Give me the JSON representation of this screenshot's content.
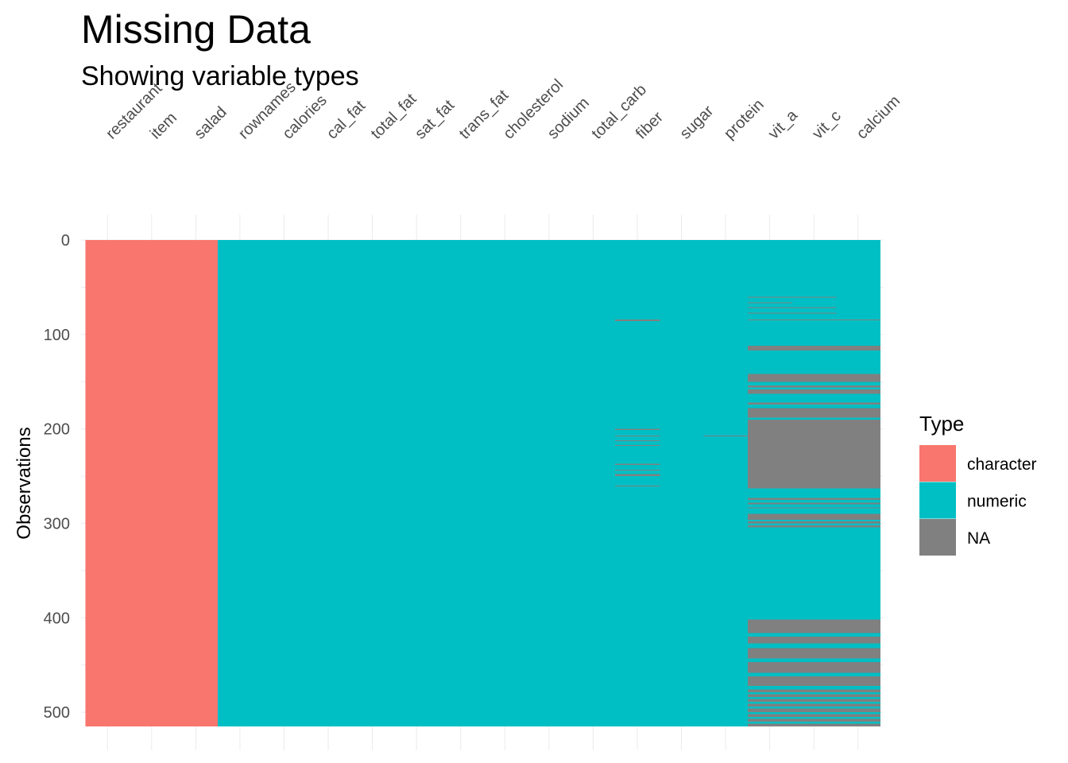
{
  "chart_data": {
    "type": "heatmap",
    "title": "Missing Data",
    "subtitle": "Showing variable types",
    "ylabel": "Observations",
    "xlabel": "",
    "n_obs": 515,
    "ylim": [
      0,
      515
    ],
    "y_ticks": [
      0,
      100,
      200,
      300,
      400,
      500
    ],
    "grid": true,
    "columns": [
      {
        "name": "restaurant",
        "type": "character"
      },
      {
        "name": "item",
        "type": "character"
      },
      {
        "name": "salad",
        "type": "character"
      },
      {
        "name": "rownames",
        "type": "numeric"
      },
      {
        "name": "calories",
        "type": "numeric"
      },
      {
        "name": "cal_fat",
        "type": "numeric"
      },
      {
        "name": "total_fat",
        "type": "numeric"
      },
      {
        "name": "sat_fat",
        "type": "numeric"
      },
      {
        "name": "trans_fat",
        "type": "numeric"
      },
      {
        "name": "cholesterol",
        "type": "numeric"
      },
      {
        "name": "sodium",
        "type": "numeric"
      },
      {
        "name": "total_carb",
        "type": "numeric"
      },
      {
        "name": "fiber",
        "type": "numeric"
      },
      {
        "name": "sugar",
        "type": "numeric"
      },
      {
        "name": "protein",
        "type": "numeric"
      },
      {
        "name": "vit_a",
        "type": "numeric"
      },
      {
        "name": "vit_c",
        "type": "numeric"
      },
      {
        "name": "calcium",
        "type": "numeric"
      }
    ],
    "missing": [
      {
        "columns": [
          "fiber"
        ],
        "rows": [
          [
            84,
            86
          ],
          [
            200,
            201
          ],
          [
            207,
            208
          ],
          [
            212,
            213
          ],
          [
            217,
            218
          ],
          [
            237,
            238
          ],
          [
            243,
            244
          ],
          [
            248,
            250
          ],
          [
            260,
            261
          ]
        ]
      },
      {
        "columns": [
          "protein"
        ],
        "rows": [
          [
            207,
            208
          ]
        ]
      },
      {
        "columns": [
          "vit_a"
        ],
        "rows": [
          [
            60,
            61
          ],
          [
            66,
            67
          ],
          [
            71,
            72
          ],
          [
            77,
            78
          ]
        ]
      },
      {
        "columns": [
          "vit_a",
          "vit_c"
        ],
        "rows": [
          [
            60,
            61
          ],
          [
            71,
            72
          ],
          [
            77,
            78
          ]
        ]
      },
      {
        "columns": [
          "vit_a",
          "vit_c",
          "calcium"
        ],
        "rows": [
          [
            84,
            85
          ],
          [
            112,
            117
          ],
          [
            142,
            150
          ],
          [
            154,
            156
          ],
          [
            158,
            163
          ],
          [
            172,
            174
          ],
          [
            178,
            188
          ],
          [
            190,
            263
          ],
          [
            273,
            275
          ],
          [
            278,
            280
          ],
          [
            283,
            284
          ],
          [
            290,
            296
          ],
          [
            298,
            300
          ],
          [
            302,
            304
          ],
          [
            402,
            416
          ],
          [
            420,
            427
          ],
          [
            432,
            443
          ],
          [
            447,
            458
          ],
          [
            462,
            472
          ],
          [
            476,
            479
          ],
          [
            481,
            484
          ],
          [
            486,
            489
          ],
          [
            491,
            494
          ],
          [
            496,
            500
          ],
          [
            502,
            505
          ],
          [
            507,
            510
          ],
          [
            512,
            515
          ]
        ]
      }
    ],
    "legend": {
      "title": "Type",
      "position": "right",
      "entries": [
        {
          "label": "character",
          "color": "#F8766D"
        },
        {
          "label": "numeric",
          "color": "#00BFC4"
        },
        {
          "label": "NA",
          "color": "#808080"
        }
      ]
    }
  }
}
